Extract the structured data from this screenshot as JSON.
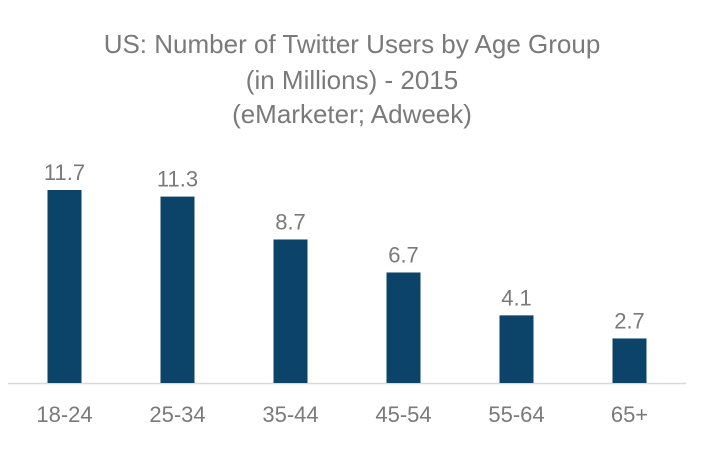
{
  "chart_data": {
    "type": "bar",
    "title_lines": [
      "US: Number of Twitter Users by Age Group",
      "(in Millions) - 2015",
      "(eMarketer; Adweek)"
    ],
    "categories": [
      "18-24",
      "25-34",
      "35-44",
      "45-54",
      "55-64",
      "65+"
    ],
    "values": [
      11.7,
      11.3,
      8.7,
      6.7,
      4.1,
      2.7
    ],
    "data_labels": [
      "11.7",
      "11.3",
      "8.7",
      "6.7",
      "4.1",
      "2.7"
    ],
    "xlabel": "",
    "ylabel": "",
    "ylim": [
      0,
      11.7
    ],
    "grid": false,
    "legend": "none",
    "colors": {
      "bar": "#0b4468",
      "text": "#7a7a7a",
      "axis": "#d9d9d9"
    }
  }
}
